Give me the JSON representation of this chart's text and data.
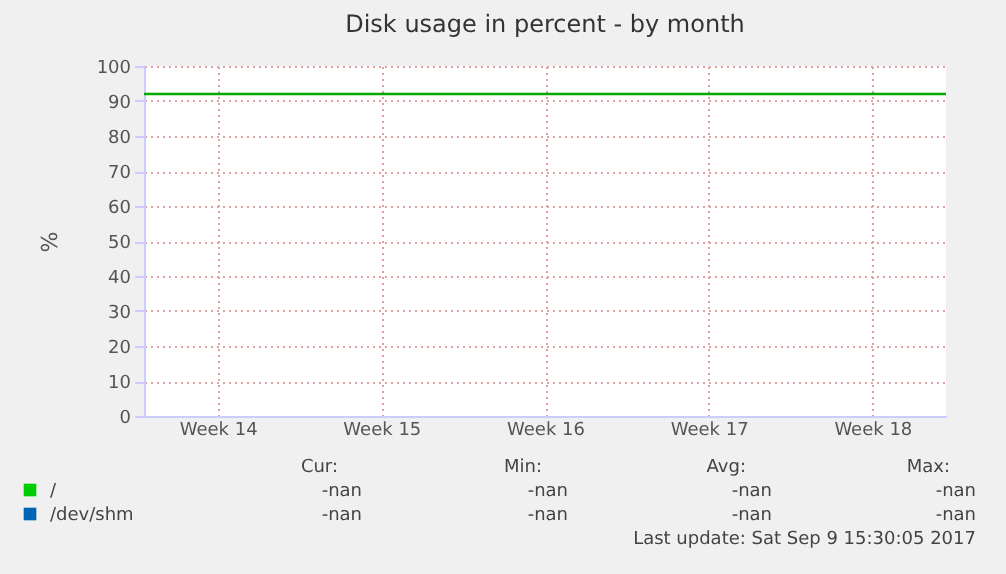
{
  "chart_data": {
    "type": "line",
    "title": "Disk usage in percent - by month",
    "ylabel": "%",
    "categories": [
      "Week 14",
      "Week 15",
      "Week 16",
      "Week 17",
      "Week 18"
    ],
    "series": [
      {
        "name": "/",
        "color": "#00cc00",
        "values": [
          null,
          null,
          null,
          null,
          null
        ]
      },
      {
        "name": "/dev/shm",
        "color": "#0066b3",
        "values": [
          null,
          null,
          null,
          null,
          null
        ]
      }
    ],
    "ylim": [
      0,
      100
    ],
    "yticks": [
      0,
      10,
      20,
      30,
      40,
      50,
      60,
      70,
      80,
      90,
      100
    ],
    "ref_lines": [
      {
        "axis": "y",
        "value": 92,
        "color": "#00aa00"
      }
    ],
    "grid": true,
    "legend": "bottom left",
    "annotations": [
      "Cur:",
      "Min:",
      "Avg:",
      "Max:",
      "-nan",
      "-nan",
      "-nan",
      "-nan",
      "-nan",
      "-nan",
      "-nan",
      "-nan",
      "Last update: Sat Sep  9 15:30:05 2017"
    ]
  }
}
